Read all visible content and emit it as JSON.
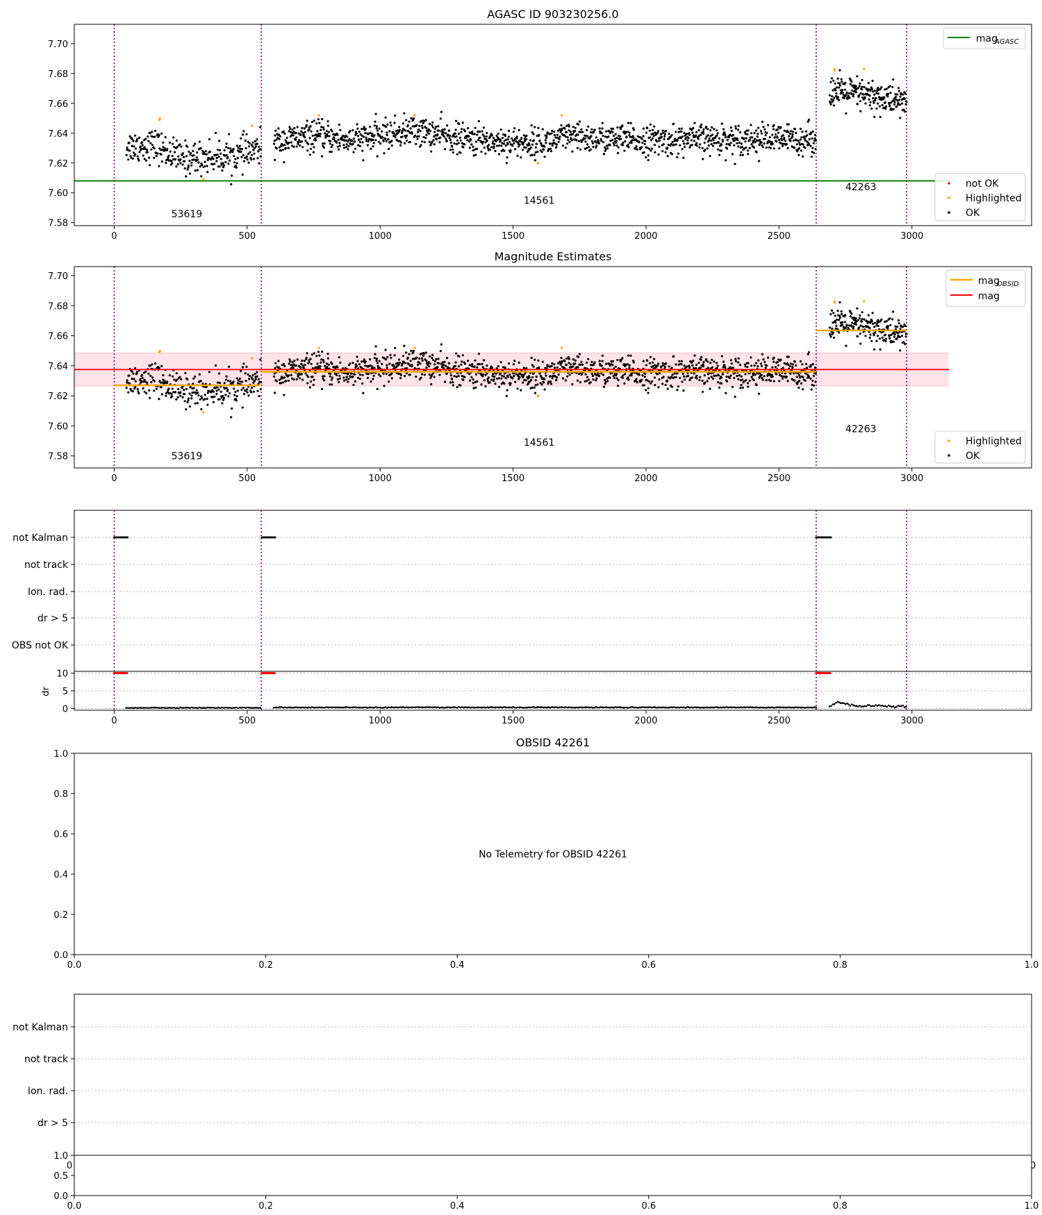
{
  "colors": {
    "ok": "#000000",
    "highlighted": "#ffa500",
    "not_ok": "#ff0000",
    "mag_agasc_line": "#008000",
    "mag_obsid_line": "#ffa500",
    "mag_line": "#ff0000",
    "mag_band": "#ffc0cb",
    "obs_boundary": "#800080",
    "grid": "#b0b0b0"
  },
  "chart_data": [
    {
      "id": "agasc",
      "type": "scatter",
      "title": "AGASC ID 903230256.0",
      "xlim": [
        -150,
        3450
      ],
      "ylim": [
        7.578,
        7.713
      ],
      "xticks": [
        0,
        500,
        1000,
        1500,
        2000,
        2500,
        3000
      ],
      "yticks": [
        7.58,
        7.6,
        7.62,
        7.64,
        7.66,
        7.68,
        7.7
      ],
      "obs_boundaries": [
        0,
        553,
        2640,
        2980
      ],
      "obs_labels": [
        {
          "label": "53619",
          "x": 273,
          "y": 7.586
        },
        {
          "label": "14561",
          "x": 1598,
          "y": 7.595
        },
        {
          "label": "42263",
          "x": 2808,
          "y": 7.604
        }
      ],
      "lines": [
        {
          "name": "mag_AGASC",
          "x": [
            -150,
            3155
          ],
          "y": [
            7.608,
            7.608
          ],
          "color": "#008000"
        }
      ],
      "legend_top": [
        "mag_AGASC"
      ],
      "legend_bottom": [
        "not OK",
        "Highlighted",
        "OK"
      ],
      "legend": {
        "mag_agasc_main": "mag",
        "mag_agasc_sub": "AGASC",
        "not_ok": "not OK",
        "highlighted": "Highlighted",
        "ok": "OK"
      },
      "series": [
        {
          "name": "OK",
          "segments": [
            {
              "x": [
                45,
                553
              ],
              "trend": [
                [
                  45,
                  7.631
                ],
                [
                  150,
                  7.632
                ],
                [
                  250,
                  7.623
                ],
                [
                  350,
                  7.624
                ],
                [
                  450,
                  7.625
                ],
                [
                  553,
                  7.629
                ]
              ],
              "scatter": 0.0055,
              "n": 300
            },
            {
              "x": [
                600,
                2640
              ],
              "trend": [
                [
                  600,
                  7.634
                ],
                [
                  750,
                  7.638
                ],
                [
                  900,
                  7.635
                ],
                [
                  1130,
                  7.642
                ],
                [
                  1300,
                  7.636
                ],
                [
                  1600,
                  7.633
                ],
                [
                  1700,
                  7.637
                ],
                [
                  2000,
                  7.635
                ],
                [
                  2300,
                  7.636
                ],
                [
                  2640,
                  7.636
                ]
              ],
              "scatter": 0.005,
              "n": 1350
            },
            {
              "x": [
                2690,
                2980
              ],
              "trend": [
                [
                  2690,
                  7.668
                ],
                [
                  2800,
                  7.666
                ],
                [
                  2900,
                  7.663
                ],
                [
                  2980,
                  7.661
                ]
              ],
              "scatter": 0.0055,
              "n": 220
            }
          ]
        },
        {
          "name": "Highlighted",
          "points": [
            [
              170,
              7.649
            ],
            [
              172,
              7.65
            ],
            [
              335,
              7.609
            ],
            [
              518,
              7.645
            ],
            [
              770,
              7.652
            ],
            [
              1130,
              7.652
            ],
            [
              1595,
              7.62
            ],
            [
              1683,
              7.652
            ],
            [
              2708,
              7.683
            ],
            [
              2710,
              7.682
            ],
            [
              2820,
              7.683
            ]
          ]
        },
        {
          "name": "not OK",
          "points": []
        }
      ]
    },
    {
      "id": "mag_estimates",
      "type": "scatter",
      "title": "Magnitude Estimates",
      "xlim": [
        -150,
        3450
      ],
      "ylim": [
        7.572,
        7.706
      ],
      "xticks": [
        0,
        500,
        1000,
        1500,
        2000,
        2500,
        3000
      ],
      "yticks": [
        7.58,
        7.6,
        7.62,
        7.64,
        7.66,
        7.68,
        7.7
      ],
      "obs_boundaries": [
        0,
        553,
        2640,
        2980
      ],
      "obs_labels": [
        {
          "label": "53619",
          "x": 273,
          "y": 7.58
        },
        {
          "label": "14561",
          "x": 1598,
          "y": 7.589
        },
        {
          "label": "42263",
          "x": 2808,
          "y": 7.598
        }
      ],
      "mag": {
        "value": 7.6375,
        "band": [
          7.6265,
          7.6485
        ],
        "x": [
          -150,
          3140
        ]
      },
      "mag_obsid": [
        {
          "x": [
            0,
            553
          ],
          "y": 7.627
        },
        {
          "x": [
            553,
            2640
          ],
          "y": 7.636
        },
        {
          "x": [
            2640,
            2980
          ],
          "y": 7.6635
        }
      ],
      "legend_top": [
        "mag_OBSID",
        "mag"
      ],
      "legend_bottom": [
        "Highlighted",
        "OK"
      ],
      "legend": {
        "mag_obsid_main": "mag",
        "mag_obsid_sub": "OBSID",
        "mag": "mag",
        "highlighted": "Highlighted",
        "ok": "OK"
      },
      "series_ref": "agasc"
    },
    {
      "id": "flags",
      "type": "scatter",
      "xlim": [
        -150,
        3450
      ],
      "xticks": [
        0,
        500,
        1000,
        1500,
        2000,
        2500,
        3000
      ],
      "categories": [
        "not Kalman",
        "not track",
        "Ion. rad.",
        "dr > 5",
        "OBS not OK"
      ],
      "obs_boundaries": [
        0,
        553,
        2640,
        2980
      ],
      "flag_points": [
        {
          "category": "not Kalman",
          "x": [
            0,
            50
          ]
        },
        {
          "category": "not Kalman",
          "x": [
            555,
            605
          ]
        },
        {
          "category": "not Kalman",
          "x": [
            2640,
            2695
          ]
        }
      ],
      "dr": {
        "ylabel": "dr",
        "ylim": [
          -0.5,
          10.5
        ],
        "yticks": [
          0,
          5,
          10
        ],
        "not_ok": [
          {
            "x": [
              0,
              50
            ],
            "y": 10
          },
          {
            "x": [
              555,
              605
            ],
            "y": 10
          },
          {
            "x": [
              2640,
              2695
            ],
            "y": 10
          }
        ],
        "ok": [
          {
            "x": [
              45,
              553
            ],
            "y": 0.2
          },
          {
            "x": [
              600,
              2640
            ],
            "y": 0.3
          },
          {
            "x": [
              2690,
              2980
            ],
            "trend": [
              [
                2690,
                0.8
              ],
              [
                2720,
                1.8
              ],
              [
                2760,
                1.2
              ],
              [
                2800,
                0.5
              ],
              [
                2850,
                0.9
              ],
              [
                2900,
                0.7
              ],
              [
                2980,
                0.6
              ]
            ]
          }
        ]
      }
    },
    {
      "id": "obsid_empty",
      "type": "scatter",
      "title": "OBSID 42261",
      "message": "No Telemetry for OBSID 42261",
      "xlim": [
        0,
        1
      ],
      "ylim": [
        0,
        1
      ],
      "xticks": [
        0,
        0.2,
        0.4,
        0.6,
        0.8,
        1.0
      ],
      "yticks": [
        0,
        0.2,
        0.4,
        0.6,
        0.8,
        1.0
      ]
    },
    {
      "id": "flags_empty",
      "type": "scatter",
      "categories": [
        "not Kalman",
        "not track",
        "Ion. rad.",
        "dr > 5"
      ],
      "partial_ticks": {
        "left": "0",
        "right": "0"
      },
      "sub": {
        "xlim": [
          0,
          1
        ],
        "ylim": [
          0,
          1
        ],
        "xticks": [
          0,
          0.2,
          0.4,
          0.6,
          0.8,
          1.0
        ],
        "yticks": [
          0,
          0.5,
          1.0
        ]
      }
    }
  ]
}
